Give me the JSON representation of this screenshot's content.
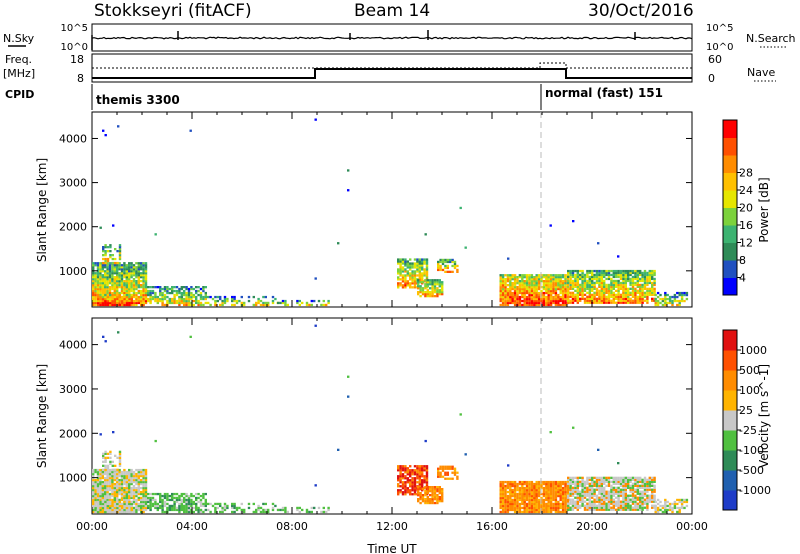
{
  "header": {
    "station": "Stokkseyri (fitACF)",
    "beam": "Beam 14",
    "date": "30/Oct/2016"
  },
  "left_labels": {
    "nsky": "N.Sky",
    "freq_line1": "Freq.",
    "freq_line2": "[MHz]",
    "cpid": "CPID"
  },
  "right_labels": {
    "nsearch": "N.Search",
    "nave": "Nave"
  },
  "noise_panel": {
    "left_ticks": [
      "10^5",
      "10^0"
    ],
    "right_ticks": [
      "10^5",
      "10^0"
    ]
  },
  "freq_panel": {
    "left_ticks": [
      "18",
      "8"
    ],
    "right_ticks": [
      "60",
      "0"
    ]
  },
  "cpid_panel": {
    "modes": [
      {
        "name": "themis 3300",
        "start_hour": 0
      },
      {
        "name": "normal (fast) 151",
        "start_hour": 18
      }
    ]
  },
  "chart_data": [
    {
      "type": "heatmap",
      "name": "power",
      "xlabel": "",
      "ylabel": "Slant Range [km]",
      "xlim_hours": [
        0,
        24
      ],
      "ylim_km": [
        180,
        4600
      ],
      "yticks": [
        "1000",
        "2000",
        "3000",
        "4000"
      ],
      "colorbar": {
        "label": "Power [dB]",
        "ticks": [
          "4",
          "8",
          "12",
          "16",
          "20",
          "24",
          "28"
        ],
        "colors": [
          "#0000ff",
          "#2050c0",
          "#2e8b57",
          "#3cb371",
          "#7cd23c",
          "#e6e600",
          "#ffc000",
          "#ff8c00",
          "#ff5000",
          "#ff0000"
        ]
      }
    },
    {
      "type": "heatmap",
      "name": "velocity",
      "xlabel": "Time UT",
      "ylabel": "Slant Range [km]",
      "xlim_hours": [
        0,
        24
      ],
      "ylim_km": [
        180,
        4600
      ],
      "xticks": [
        "00:00",
        "04:00",
        "08:00",
        "12:00",
        "16:00",
        "20:00",
        "00:00"
      ],
      "yticks": [
        "1000",
        "2000",
        "3000",
        "4000"
      ],
      "colorbar": {
        "label": "Velocity [m s^-1]",
        "ticks": [
          "1000",
          "500",
          "100",
          "25",
          "-25",
          "-100",
          "-500",
          "-1000"
        ],
        "colors": [
          "#1e3cc8",
          "#2060b0",
          "#2e8b57",
          "#50c040",
          "#c8c8c8",
          "#ffb400",
          "#ff8c00",
          "#ff5000",
          "#e01010"
        ]
      }
    }
  ]
}
